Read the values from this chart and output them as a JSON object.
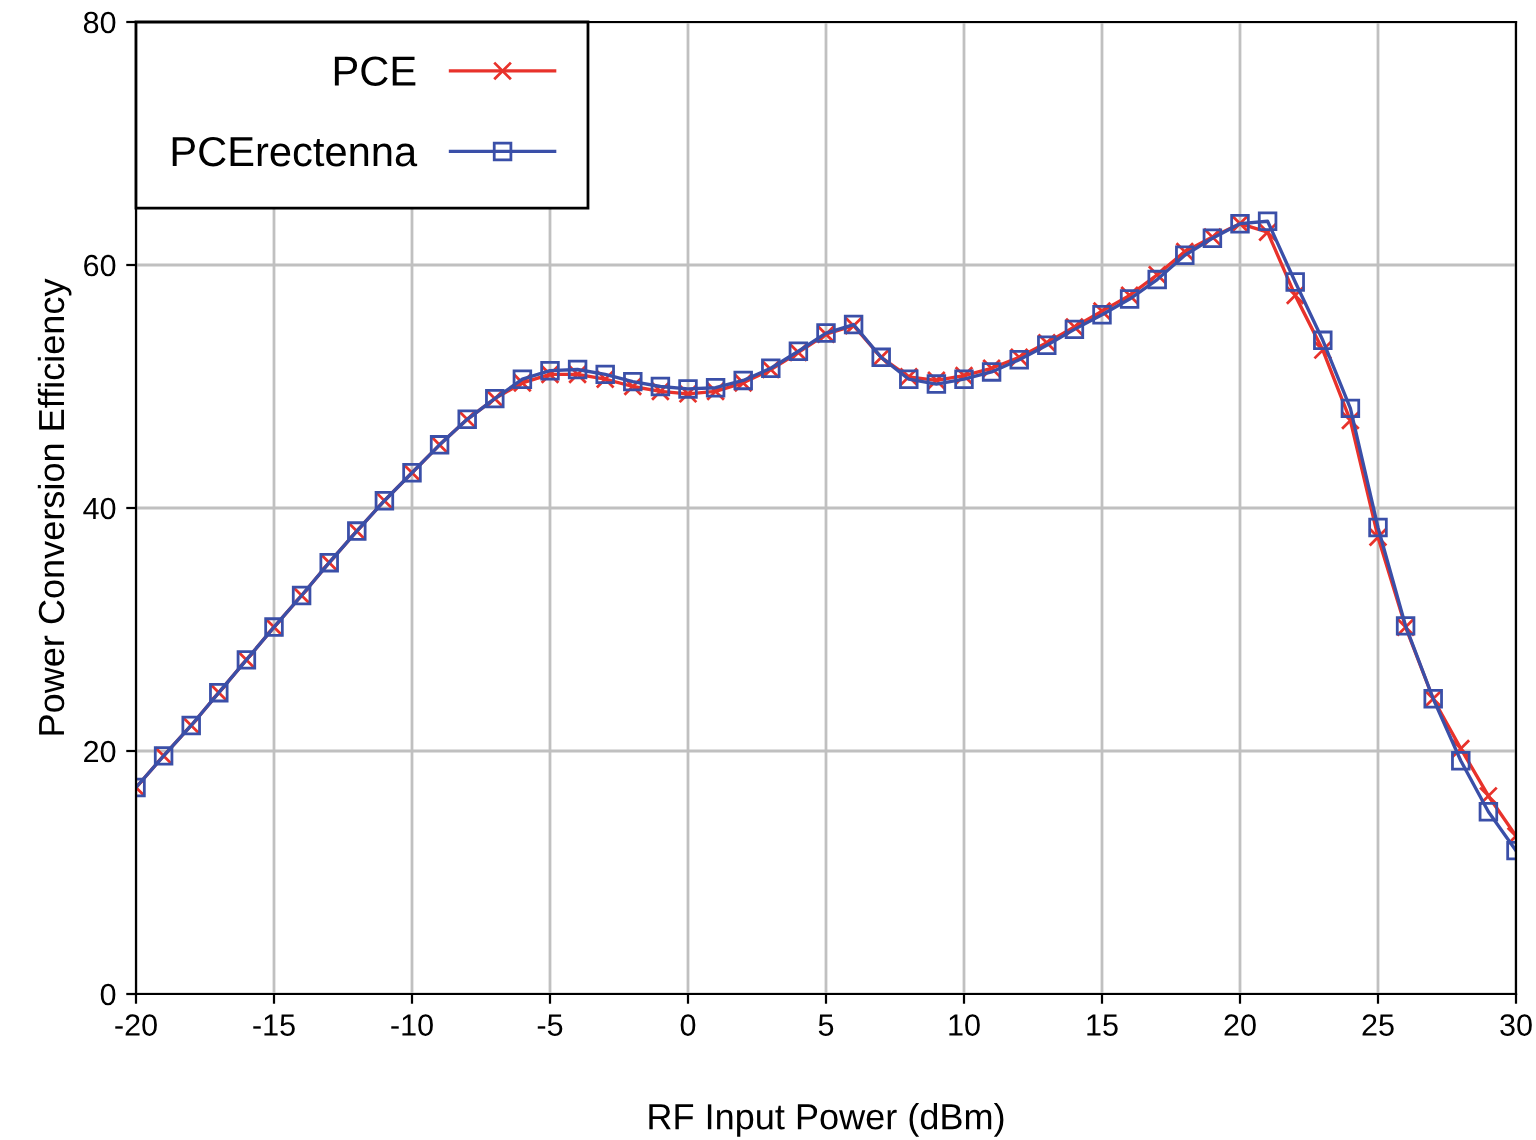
{
  "chart_data": {
    "type": "line",
    "xlabel": "RF Input Power (dBm)",
    "ylabel": "Power Conversion Efficiency",
    "x": [
      -20,
      -19,
      -18,
      -17,
      -16,
      -15,
      -14,
      -13,
      -12,
      -11,
      -10,
      -9,
      -8,
      -7,
      -6,
      -5,
      -4,
      -3,
      -2,
      -1,
      0,
      1,
      2,
      3,
      4,
      5,
      6,
      7,
      8,
      9,
      10,
      11,
      12,
      13,
      14,
      15,
      16,
      17,
      18,
      19,
      20,
      21,
      22,
      23,
      24,
      25,
      26,
      27,
      28,
      29,
      30
    ],
    "series": [
      {
        "name": "PCE",
        "color": "#e8322b",
        "marker": "cross",
        "values": [
          17,
          19.6,
          22.1,
          24.8,
          27.5,
          30.2,
          32.8,
          35.5,
          38.1,
          40.6,
          42.9,
          45.2,
          47.3,
          49.0,
          50.3,
          51.0,
          51.0,
          50.6,
          50.0,
          49.6,
          49.4,
          49.6,
          50.3,
          51.4,
          52.8,
          54.3,
          55.0,
          52.4,
          50.8,
          50.5,
          50.9,
          51.5,
          52.4,
          53.6,
          54.9,
          56.2,
          57.5,
          59.2,
          61.1,
          62.3,
          63.4,
          62.7,
          57.5,
          53.0,
          47.2,
          37.6,
          30.2,
          24.3,
          20.2,
          16.3,
          13.0
        ]
      },
      {
        "name": "PCErectenna",
        "color": "#3a4fa8",
        "marker": "square",
        "values": [
          17,
          19.6,
          22.1,
          24.8,
          27.5,
          30.2,
          32.8,
          35.5,
          38.1,
          40.6,
          42.9,
          45.2,
          47.3,
          49.0,
          50.6,
          51.3,
          51.4,
          51.0,
          50.4,
          50.0,
          49.8,
          49.9,
          50.5,
          51.5,
          52.9,
          54.4,
          55.1,
          52.4,
          50.6,
          50.2,
          50.6,
          51.2,
          52.2,
          53.4,
          54.7,
          55.9,
          57.2,
          58.8,
          60.8,
          62.2,
          63.4,
          63.6,
          58.6,
          53.8,
          48.2,
          38.4,
          30.3,
          24.3,
          19.2,
          15.0,
          11.8
        ]
      }
    ],
    "xlim": [
      -20,
      30
    ],
    "xticks": [
      -20,
      -15,
      -10,
      -5,
      0,
      5,
      10,
      15,
      20,
      25,
      30
    ],
    "ylim": [
      0,
      80
    ],
    "yticks": [
      0,
      20,
      40,
      60,
      80
    ],
    "grid": true,
    "legend": "top left",
    "line_style": "solid"
  }
}
